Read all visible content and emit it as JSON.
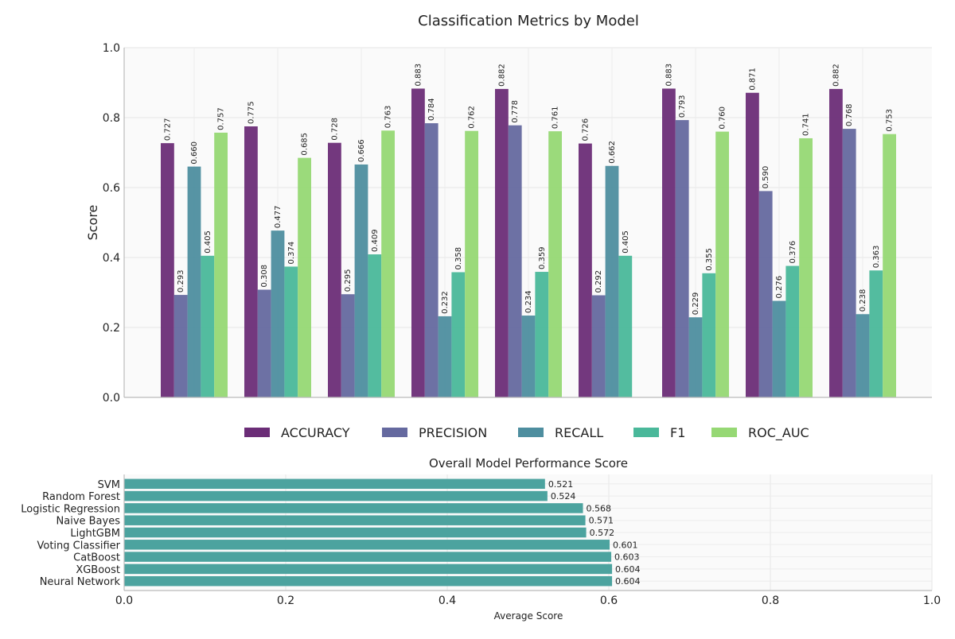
{
  "chart_data": [
    {
      "type": "bar",
      "title": "Classification Metrics by Model",
      "xlabel": "",
      "ylabel": "Score",
      "ylim": [
        0,
        1.0
      ],
      "yticks": [
        "0.0",
        "0.2",
        "0.4",
        "0.6",
        "0.8",
        "1.0"
      ],
      "grid": true,
      "legend_position": "bottom-center",
      "categories": [
        "",
        "",
        "",
        "",
        "",
        "",
        "",
        "",
        ""
      ],
      "series": [
        {
          "name": "ACCURACY",
          "color": "#6b2d77",
          "values": [
            0.727,
            0.775,
            0.728,
            0.883,
            0.882,
            0.726,
            0.883,
            0.871,
            0.882
          ],
          "labels": [
            "0.727",
            "0.775",
            "0.728",
            "0.883",
            "0.882",
            "0.726",
            "0.883",
            "0.871",
            "0.882"
          ]
        },
        {
          "name": "PRECISION",
          "color": "#65699f",
          "values": [
            0.293,
            0.308,
            0.295,
            0.784,
            0.778,
            0.292,
            0.793,
            0.59,
            0.768
          ],
          "labels": [
            "0.293",
            "0.308",
            "0.295",
            "0.784",
            "0.778",
            "0.292",
            "0.793",
            "0.590",
            "0.768"
          ]
        },
        {
          "name": "RECALL",
          "color": "#4e8e9f",
          "values": [
            0.66,
            0.477,
            0.666,
            0.232,
            0.234,
            0.662,
            0.229,
            0.276,
            0.238
          ],
          "labels": [
            "0.660",
            "0.477",
            "0.666",
            "0.232",
            "0.234",
            "0.662",
            "0.229",
            "0.276",
            "0.238"
          ]
        },
        {
          "name": "F1",
          "color": "#4ab89a",
          "values": [
            0.405,
            0.374,
            0.409,
            0.358,
            0.359,
            0.405,
            0.355,
            0.376,
            0.363
          ],
          "labels": [
            "0.405",
            "0.374",
            "0.409",
            "0.358",
            "0.359",
            "0.405",
            "0.355",
            "0.376",
            "0.363"
          ]
        },
        {
          "name": "ROC_AUC",
          "color": "#96d874",
          "values": [
            0.757,
            0.685,
            0.763,
            0.762,
            0.761,
            null,
            0.76,
            0.741,
            0.753
          ],
          "labels": [
            "0.757",
            "0.685",
            "0.763",
            "0.762",
            "0.761",
            "",
            "0.760",
            "0.741",
            "0.753"
          ]
        }
      ]
    },
    {
      "type": "bar",
      "orientation": "horizontal",
      "title": "Overall Model Performance Score",
      "xlabel": "Average Score",
      "ylabel": "",
      "xlim": [
        0,
        1.0
      ],
      "xticks": [
        "0.0",
        "0.2",
        "0.4",
        "0.6",
        "0.8",
        "1.0"
      ],
      "grid": true,
      "bar_color": "#4ca39f",
      "categories": [
        "SVM",
        "Random Forest",
        "Logistic Regression",
        "Naive Bayes",
        "LightGBM",
        "Voting Classifier",
        "CatBoost",
        "XGBoost",
        "Neural Network"
      ],
      "values": [
        0.521,
        0.524,
        0.568,
        0.571,
        0.572,
        0.601,
        0.603,
        0.604,
        0.604
      ],
      "labels": [
        "0.521",
        "0.524",
        "0.568",
        "0.571",
        "0.572",
        "0.601",
        "0.603",
        "0.604",
        "0.604"
      ]
    }
  ]
}
